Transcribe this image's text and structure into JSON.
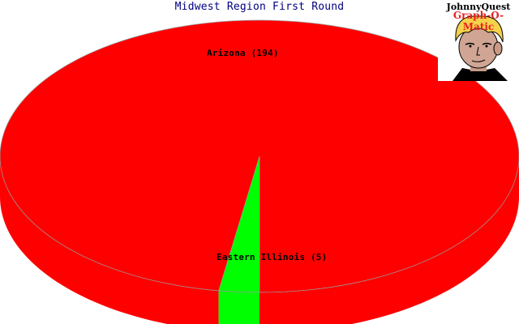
{
  "title": "Midwest Region First Round",
  "logo": {
    "line1": "JohnnyQuest",
    "line2": "Graph-O-Matic"
  },
  "colors": {
    "slice_colors": [
      "#ff0000",
      "#00ff00"
    ],
    "title": "#000080",
    "background": "#ffffff"
  },
  "chart_data": {
    "type": "pie",
    "title": "Midwest Region First Round",
    "style": "3d",
    "slices": [
      {
        "label": "Arizona (194)",
        "value": 194
      },
      {
        "label": "Eastern Illinois (5)",
        "value": 5
      }
    ]
  }
}
